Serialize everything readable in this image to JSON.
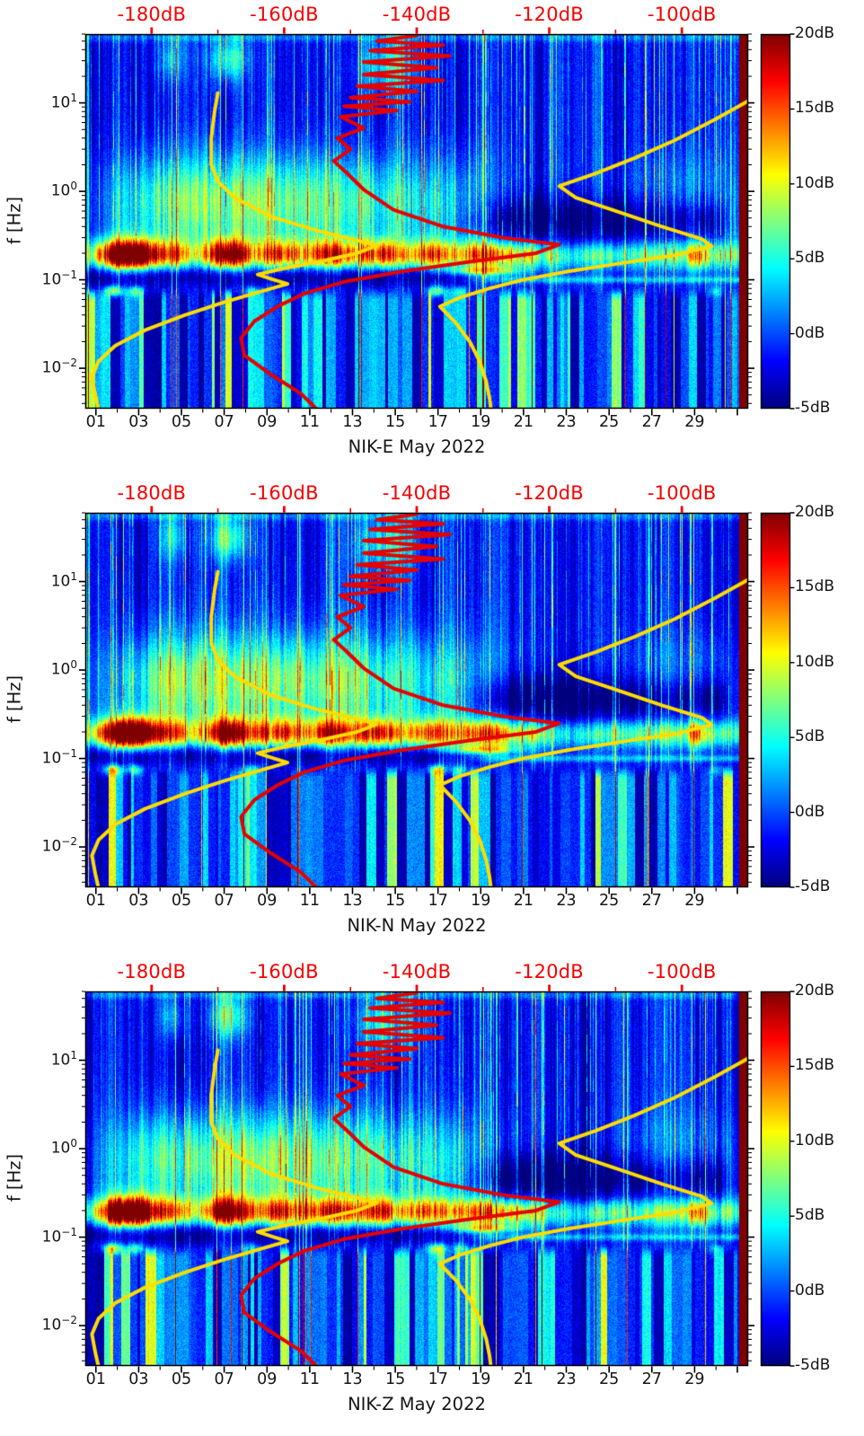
{
  "chart_data": {
    "type": "heatmap",
    "title": "",
    "panels": [
      {
        "channel": "NIK-E",
        "xlabel": "NIK-E May 2022"
      },
      {
        "channel": "NIK-N",
        "xlabel": "NIK-N May 2022"
      },
      {
        "channel": "NIK-Z",
        "xlabel": "NIK-Z May 2022"
      }
    ],
    "x_axis": {
      "tick_labels": [
        "01",
        "03",
        "05",
        "07",
        "09",
        "11",
        "13",
        "15",
        "17",
        "19",
        "21",
        "23",
        "25",
        "27",
        "29"
      ],
      "tick_values": [
        1,
        3,
        5,
        7,
        9,
        11,
        13,
        15,
        17,
        19,
        21,
        23,
        25,
        27,
        29
      ],
      "range_days": [
        1,
        32
      ]
    },
    "y_axis": {
      "label": "f [Hz]",
      "scale": "log",
      "base": "10",
      "tick_exponents": [
        "1",
        "0",
        "−1",
        "−2"
      ],
      "tick_values": [
        10,
        1,
        0.1,
        0.01
      ],
      "range_hz": [
        0.0035,
        60
      ]
    },
    "top_axis": {
      "labels": [
        "-180dB",
        "-160dB",
        "-140dB",
        "-120dB",
        "-100dB"
      ],
      "values": [
        -180,
        -160,
        -140,
        -120,
        -100
      ],
      "range_db": [
        -190,
        -90
      ],
      "color": "#f60000"
    },
    "colorbar": {
      "tick_labels": [
        "20dB",
        "15dB",
        "10dB",
        "5dB",
        "0dB",
        "-5dB"
      ],
      "tick_values": [
        20,
        15,
        10,
        5,
        0,
        -5
      ],
      "range_db": [
        -5,
        20
      ],
      "colormap": "jet"
    },
    "overlays": {
      "red_curve": {
        "color": "#e60000",
        "points_db_hz": [
          [
            -140,
            58
          ],
          [
            -146,
            50
          ],
          [
            -136,
            45
          ],
          [
            -147,
            39
          ],
          [
            -135,
            34
          ],
          [
            -148,
            29
          ],
          [
            -137,
            25
          ],
          [
            -148,
            21
          ],
          [
            -136,
            18
          ],
          [
            -149,
            15.5
          ],
          [
            -140,
            13.5
          ],
          [
            -150,
            11.5
          ],
          [
            -141,
            10.3
          ],
          [
            -151,
            9.2
          ],
          [
            -143,
            8.2
          ],
          [
            -151.5,
            7
          ],
          [
            -148,
            5.2
          ],
          [
            -152,
            4
          ],
          [
            -150,
            3
          ],
          [
            -152.5,
            2.2
          ],
          [
            -150.5,
            1.6
          ],
          [
            -148,
            1.05
          ],
          [
            -143.5,
            0.62
          ],
          [
            -136,
            0.4
          ],
          [
            -127,
            0.3
          ],
          [
            -118.5,
            0.25
          ],
          [
            -122,
            0.2
          ],
          [
            -132,
            0.16
          ],
          [
            -142,
            0.125
          ],
          [
            -151,
            0.095
          ],
          [
            -157,
            0.07
          ],
          [
            -161,
            0.05
          ],
          [
            -164.5,
            0.034
          ],
          [
            -166.5,
            0.022
          ],
          [
            -166,
            0.014
          ],
          [
            -162,
            0.0085
          ],
          [
            -157.5,
            0.0052
          ],
          [
            -155,
            0.0034
          ]
        ]
      },
      "yellow_curve_left": {
        "color": "#ffdd00",
        "points_db_hz": [
          [
            -170,
            13
          ],
          [
            -170.5,
            8
          ],
          [
            -171,
            4
          ],
          [
            -171,
            2
          ],
          [
            -170,
            1.3
          ],
          [
            -167.5,
            0.85
          ],
          [
            -162,
            0.52
          ],
          [
            -155,
            0.36
          ],
          [
            -149,
            0.28
          ],
          [
            -146,
            0.245
          ],
          [
            -149,
            0.2
          ],
          [
            -154,
            0.165
          ],
          [
            -160,
            0.135
          ],
          [
            -164,
            0.115
          ],
          [
            -161.5,
            0.1
          ],
          [
            -159.5,
            0.09
          ],
          [
            -164,
            0.072
          ],
          [
            -169,
            0.056
          ],
          [
            -175,
            0.04
          ],
          [
            -181,
            0.027
          ],
          [
            -185.5,
            0.018
          ],
          [
            -188,
            0.012
          ],
          [
            -189,
            0.008
          ],
          [
            -188.5,
            0.005
          ],
          [
            -188,
            0.0034
          ]
        ]
      },
      "yellow_curve_right": {
        "color": "#ffdd00",
        "points_db_hz": [
          [
            -90,
            10.5
          ],
          [
            -95,
            6.5
          ],
          [
            -101,
            3.8
          ],
          [
            -107,
            2.4
          ],
          [
            -113,
            1.6
          ],
          [
            -118.5,
            1.15
          ],
          [
            -116,
            0.85
          ],
          [
            -110,
            0.6
          ],
          [
            -103,
            0.4
          ],
          [
            -97,
            0.29
          ],
          [
            -95.5,
            0.24
          ],
          [
            -101,
            0.19
          ],
          [
            -109,
            0.155
          ],
          [
            -117,
            0.125
          ],
          [
            -124,
            0.1
          ],
          [
            -129,
            0.08
          ],
          [
            -133.5,
            0.063
          ],
          [
            -136.5,
            0.05
          ],
          [
            -134,
            0.032
          ],
          [
            -132,
            0.02
          ],
          [
            -130.5,
            0.012
          ],
          [
            -129.5,
            0.007
          ],
          [
            -129,
            0.0045
          ],
          [
            -128.8,
            0.0034
          ]
        ]
      }
    }
  }
}
